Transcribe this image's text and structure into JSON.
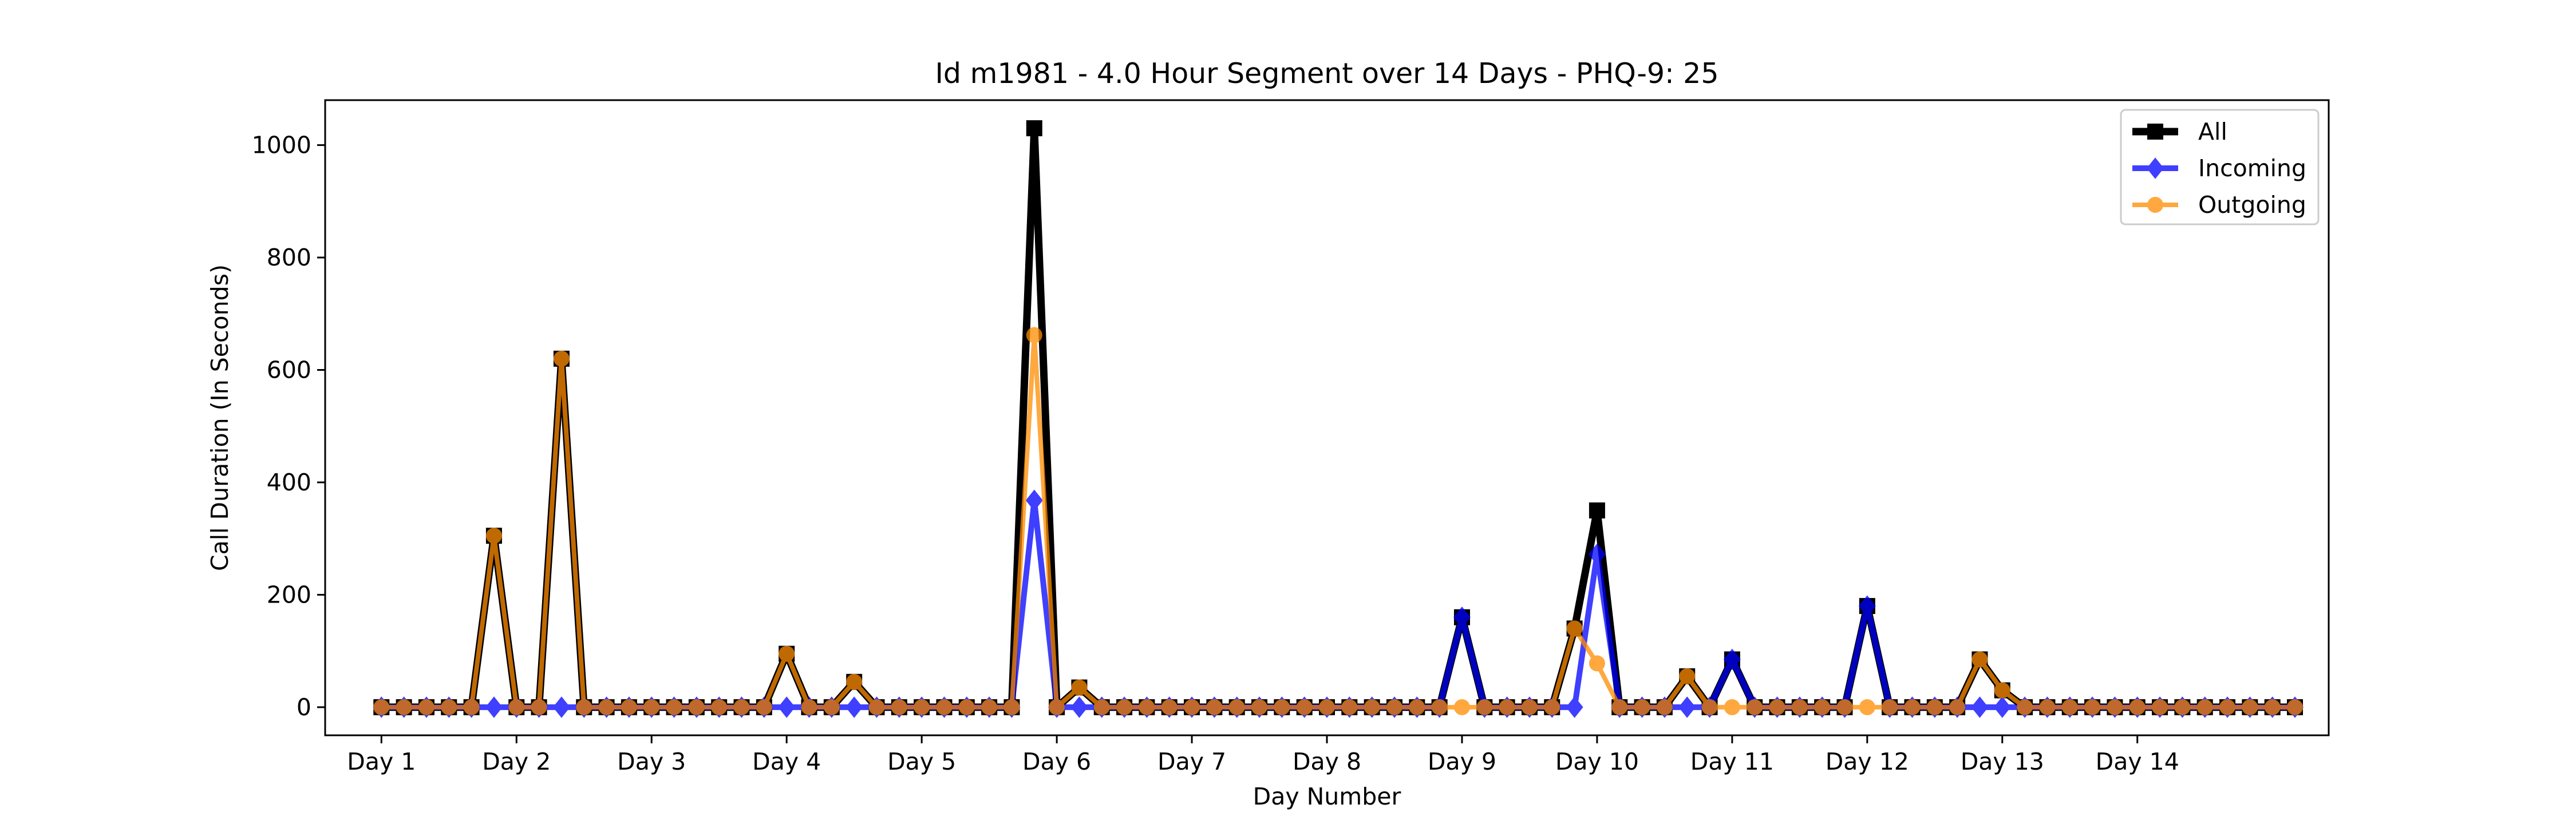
{
  "chart_data": {
    "type": "line",
    "title": "Id m1981 - 4.0 Hour Segment over 14 Days - PHQ-9: 25",
    "xlabel": "Day Number",
    "ylabel": "Call Duration (In Seconds)",
    "xtick_labels": [
      "Day 1",
      "Day 2",
      "Day 3",
      "Day 4",
      "Day 5",
      "Day 6",
      "Day 7",
      "Day 8",
      "Day 9",
      "Day 10",
      "Day 11",
      "Day 12",
      "Day 13",
      "Day 14"
    ],
    "ytick_labels": [
      "0",
      "200",
      "400",
      "600",
      "800",
      "1000"
    ],
    "yticks": [
      0,
      200,
      400,
      600,
      800,
      1000
    ],
    "ylim": [
      -50,
      1080
    ],
    "xlim": [
      -2.5,
      86.5
    ],
    "grid": false,
    "legend_position": "top-right",
    "series": [
      {
        "name": "All",
        "color": "#000000",
        "marker": "square",
        "values": [
          0,
          0,
          0,
          0,
          0,
          305,
          0,
          0,
          620,
          0,
          0,
          0,
          0,
          0,
          0,
          0,
          0,
          0,
          95,
          0,
          0,
          45,
          0,
          0,
          0,
          0,
          0,
          0,
          0,
          1030,
          0,
          35,
          0,
          0,
          0,
          0,
          0,
          0,
          0,
          0,
          0,
          0,
          0,
          0,
          0,
          0,
          0,
          0,
          160,
          0,
          0,
          0,
          0,
          140,
          350,
          0,
          0,
          0,
          55,
          0,
          85,
          0,
          0,
          0,
          0,
          0,
          180,
          0,
          0,
          0,
          0,
          85,
          30,
          0,
          0,
          0,
          0,
          0,
          0,
          0,
          0,
          0,
          0,
          0,
          0,
          0
        ]
      },
      {
        "name": "Incoming",
        "color": "#0000ff",
        "marker": "diamond",
        "values": [
          0,
          0,
          0,
          0,
          0,
          0,
          0,
          0,
          0,
          0,
          0,
          0,
          0,
          0,
          0,
          0,
          0,
          0,
          0,
          0,
          0,
          0,
          0,
          0,
          0,
          0,
          0,
          0,
          0,
          368,
          0,
          0,
          0,
          0,
          0,
          0,
          0,
          0,
          0,
          0,
          0,
          0,
          0,
          0,
          0,
          0,
          0,
          0,
          160,
          0,
          0,
          0,
          0,
          0,
          272,
          0,
          0,
          0,
          0,
          0,
          85,
          0,
          0,
          0,
          0,
          0,
          180,
          0,
          0,
          0,
          0,
          0,
          0,
          0,
          0,
          0,
          0,
          0,
          0,
          0,
          0,
          0,
          0,
          0,
          0,
          0
        ]
      },
      {
        "name": "Outgoing",
        "color": "#ff8c00",
        "marker": "circle",
        "values": [
          0,
          0,
          0,
          0,
          0,
          305,
          0,
          0,
          620,
          0,
          0,
          0,
          0,
          0,
          0,
          0,
          0,
          0,
          95,
          0,
          0,
          45,
          0,
          0,
          0,
          0,
          0,
          0,
          0,
          662,
          0,
          35,
          0,
          0,
          0,
          0,
          0,
          0,
          0,
          0,
          0,
          0,
          0,
          0,
          0,
          0,
          0,
          0,
          0,
          0,
          0,
          0,
          0,
          140,
          78,
          0,
          0,
          0,
          55,
          0,
          0,
          0,
          0,
          0,
          0,
          0,
          0,
          0,
          0,
          0,
          0,
          85,
          30,
          0,
          0,
          0,
          0,
          0,
          0,
          0,
          0,
          0,
          0,
          0,
          0,
          0
        ]
      }
    ]
  }
}
